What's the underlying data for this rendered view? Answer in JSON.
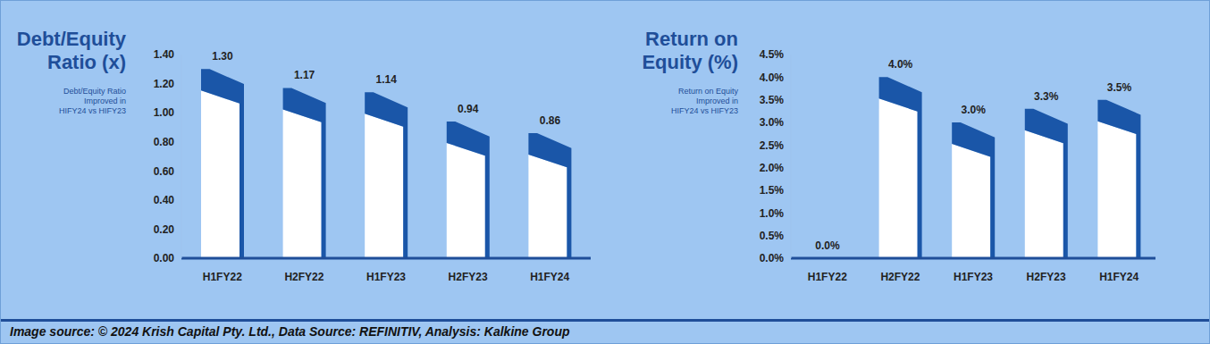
{
  "chart_data": [
    {
      "type": "bar",
      "title": "Debt/Equity Ratio (x)",
      "subtitle": "Debt/Equity Ratio Improved in HIFY24 vs HIFY23",
      "categories": [
        "H1FY22",
        "H2FY22",
        "H1FY23",
        "H2FY23",
        "H1FY24"
      ],
      "values": [
        1.3,
        1.17,
        1.14,
        0.94,
        0.86
      ],
      "value_labels": [
        "1.30",
        "1.17",
        "1.14",
        "0.94",
        "0.86"
      ],
      "color": "#1a56a8",
      "ylim": [
        0,
        1.4
      ],
      "yticks": [
        {
          "value": 0,
          "label": "0.00"
        },
        {
          "value": 0.2,
          "label": "0.20"
        },
        {
          "value": 0.4,
          "label": "0.40"
        },
        {
          "value": 0.6,
          "label": "0.60"
        },
        {
          "value": 0.8,
          "label": "0.80"
        },
        {
          "value": 1,
          "label": "1.00"
        },
        {
          "value": 1.2,
          "label": "1.20"
        },
        {
          "value": 1.4,
          "label": "1.40"
        }
      ],
      "grid": false,
      "data_labels": true
    },
    {
      "type": "bar",
      "title": "Return on Equity (%)",
      "subtitle": "Return on Equity Improved in HIFY24 vs HIFY23",
      "categories": [
        "H1FY22",
        "H2FY22",
        "H1FY23",
        "H2FY23",
        "H1FY24"
      ],
      "values": [
        0.0,
        4.0,
        3.0,
        3.3,
        3.5
      ],
      "value_labels": [
        "0.0%",
        "4.0%",
        "3.0%",
        "3.3%",
        "3.5%"
      ],
      "color": "#1a56a8",
      "ylim": [
        0,
        4.5
      ],
      "yticks": [
        {
          "value": 0,
          "label": "0.0%"
        },
        {
          "value": 0.5,
          "label": "0.5%"
        },
        {
          "value": 1,
          "label": "1.0%"
        },
        {
          "value": 1.5,
          "label": "1.5%"
        },
        {
          "value": 2,
          "label": "2.0%"
        },
        {
          "value": 2.5,
          "label": "2.5%"
        },
        {
          "value": 3,
          "label": "3.0%"
        },
        {
          "value": 3.5,
          "label": "3.5%"
        },
        {
          "value": 4,
          "label": "4.0%"
        },
        {
          "value": 4.5,
          "label": "4.5%"
        }
      ],
      "grid": false,
      "data_labels": true
    }
  ],
  "source": "Image source: © 2024 Krish Capital Pty. Ltd., Data Source: REFINITIV, Analysis: Kalkine Group"
}
